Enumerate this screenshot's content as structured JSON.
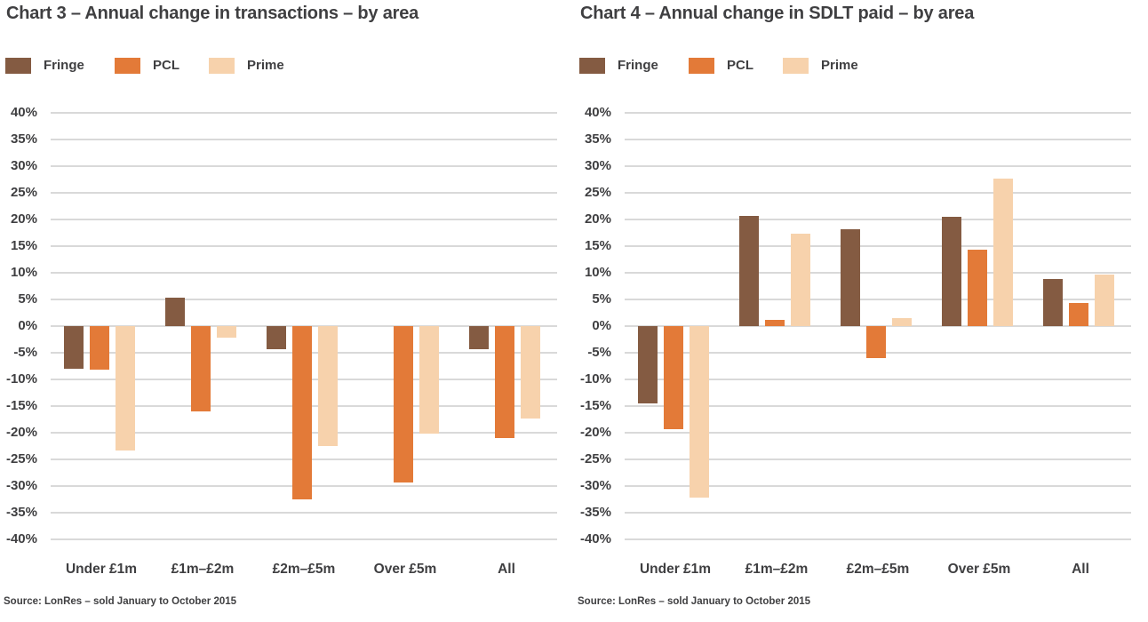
{
  "colors": {
    "fringe": "#845B42",
    "pcl": "#E37A38",
    "prime": "#F7D2AC",
    "gridline": "#D9D9D9",
    "text": "#3F3F41"
  },
  "chart_data": [
    {
      "type": "bar",
      "title": "Chart 3 – Annual change in transactions – by area",
      "source": "Source: LonRes – sold January to October 2015",
      "categories": [
        "Under £1m",
        "£1m–£2m",
        "£2m–£5m",
        "Over £5m",
        "All"
      ],
      "series": [
        {
          "name": "Fringe",
          "color_key": "fringe",
          "values": [
            -8.0,
            5.3,
            -4.3,
            0,
            -4.4
          ]
        },
        {
          "name": "PCL",
          "color_key": "pcl",
          "values": [
            -8.2,
            -16.0,
            -32.5,
            -29.4,
            -21.0
          ]
        },
        {
          "name": "Prime",
          "color_key": "prime",
          "values": [
            -23.3,
            -2.2,
            -22.5,
            -20.2,
            -17.4
          ]
        }
      ],
      "ylim": [
        -40,
        40
      ],
      "ytick_step": 5,
      "ytick_suffix": "%",
      "grid": true,
      "legend_position": "top-left"
    },
    {
      "type": "bar",
      "title": "Chart 4 – Annual change in SDLT paid – by area",
      "source": "Source: LonRes – sold January to October 2015",
      "categories": [
        "Under £1m",
        "£1m–£2m",
        "£2m–£5m",
        "Over £5m",
        "All"
      ],
      "series": [
        {
          "name": "Fringe",
          "color_key": "fringe",
          "values": [
            -14.5,
            20.7,
            18.1,
            20.5,
            8.9
          ]
        },
        {
          "name": "PCL",
          "color_key": "pcl",
          "values": [
            -19.3,
            1.2,
            -6.0,
            14.3,
            4.3
          ]
        },
        {
          "name": "Prime",
          "color_key": "prime",
          "values": [
            -32.2,
            17.3,
            1.5,
            27.7,
            9.6
          ]
        }
      ],
      "ylim": [
        -40,
        40
      ],
      "ytick_step": 5,
      "ytick_suffix": "%",
      "grid": true,
      "legend_position": "top-left"
    }
  ]
}
